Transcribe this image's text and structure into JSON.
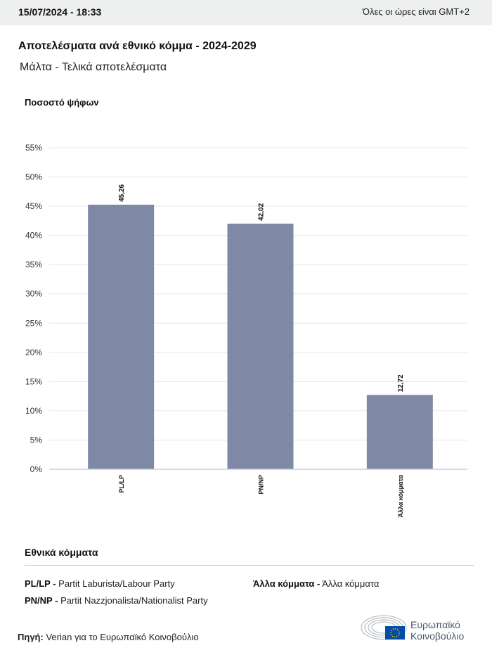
{
  "header": {
    "datetime": "15/07/2024 - 18:33",
    "timezone_note": "Όλες οι ώρες είναι GMT+2"
  },
  "title": "Αποτελέσματα ανά εθνικό κόμμα - 2024-2029",
  "subtitle": "Μάλτα - Τελικά αποτελέσματα",
  "chart_data": {
    "type": "bar",
    "ylabel": "Ποσοστό ψήφων",
    "categories": [
      "PL/LP",
      "PN/NP",
      "Άλλα κόμματα"
    ],
    "values": [
      45.26,
      42.02,
      12.72
    ],
    "value_labels": [
      "45,26",
      "42,02",
      "12,72"
    ],
    "ylim": [
      0,
      55
    ],
    "yticks": [
      "0%",
      "5%",
      "10%",
      "15%",
      "20%",
      "25%",
      "30%",
      "35%",
      "40%",
      "45%",
      "50%",
      "55%"
    ],
    "grid": true,
    "bar_color": "#7f89a6"
  },
  "legend": {
    "title": "Εθνικά κόμματα",
    "items": [
      {
        "abbr": "PL/LP -",
        "name": "Partit Laburista/Labour Party"
      },
      {
        "abbr": "PN/NP -",
        "name": "Partit Nazzjonalista/Nationalist Party"
      },
      {
        "abbr": "Άλλα κόμματα -",
        "name": "Άλλα κόμματα"
      }
    ]
  },
  "source": {
    "label": "Πηγή:",
    "text": "Verian για το Ευρωπαϊκό Κοινοβούλιο"
  },
  "logo": {
    "line1": "Ευρωπαϊκό",
    "line2": "Κοινοβούλιο",
    "eu_blue": "#034ea2"
  }
}
